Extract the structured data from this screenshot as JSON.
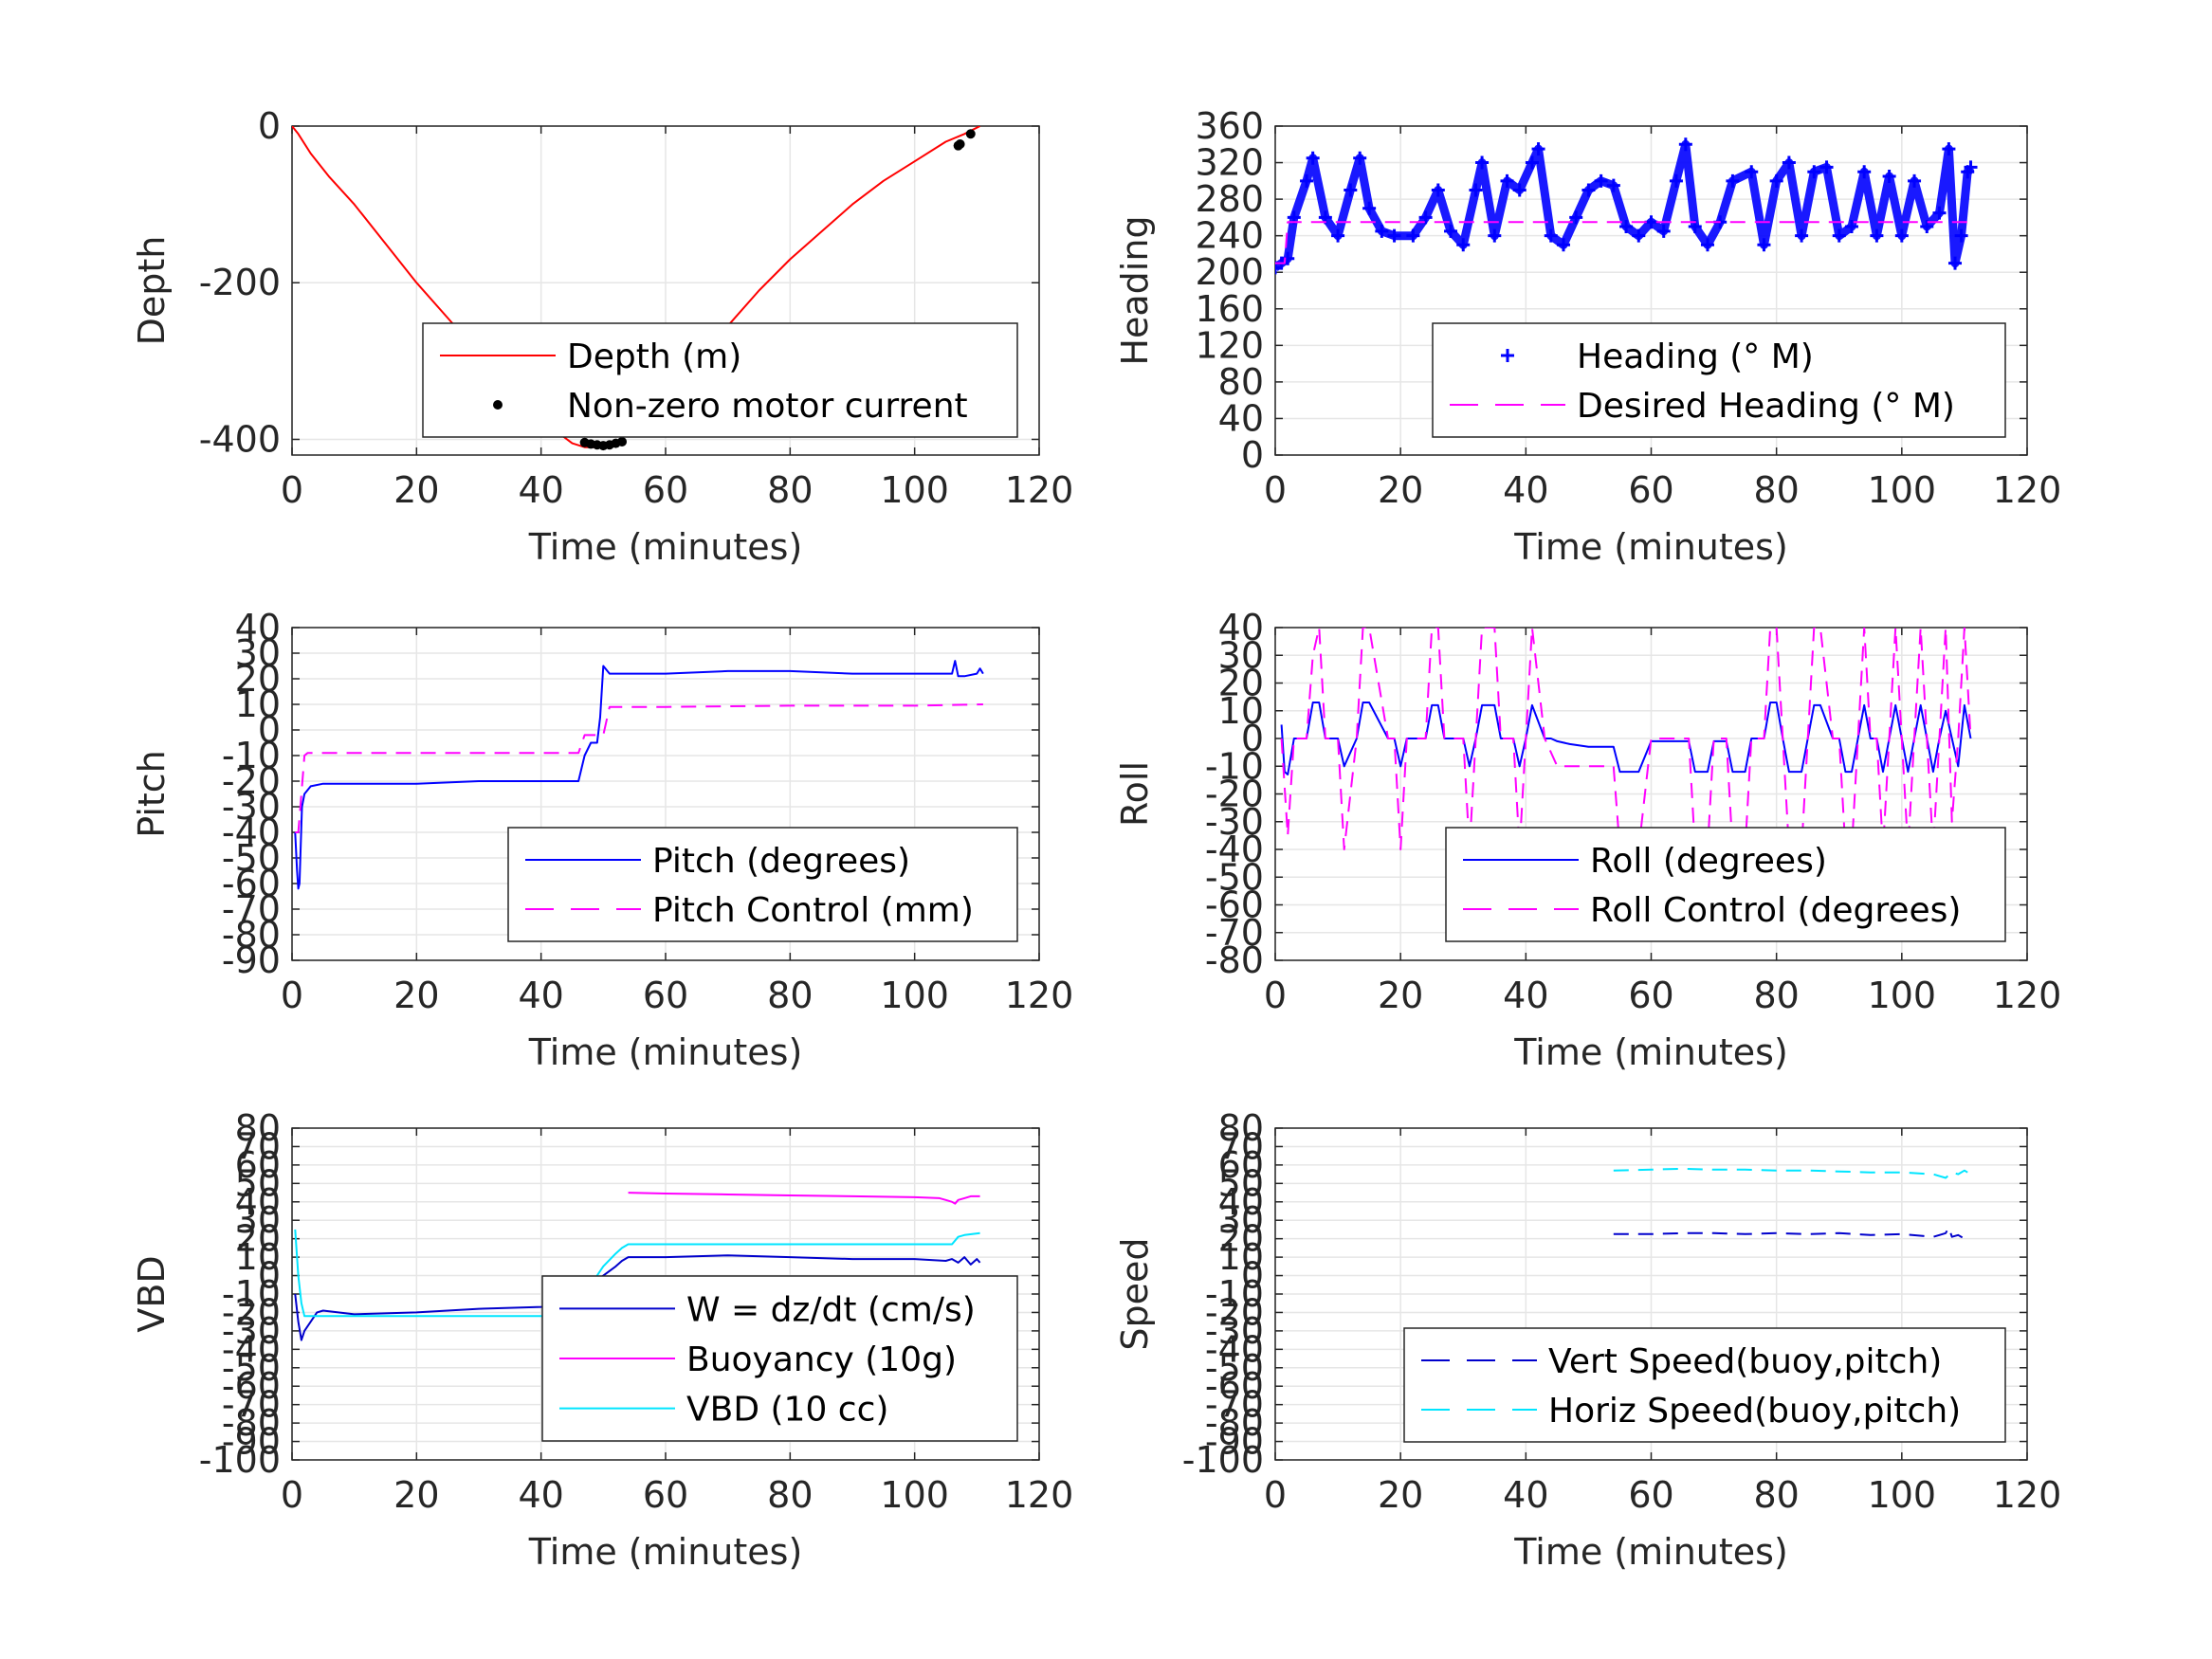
{
  "chart_data": [
    {
      "type": "line",
      "xlabel": "Time (minutes)",
      "ylabel": "Depth",
      "xlim": [
        0,
        120
      ],
      "ylim": [
        -420,
        0
      ],
      "xticks": [
        0,
        20,
        40,
        60,
        80,
        100,
        120
      ],
      "yticks": [
        -400,
        -200,
        0
      ],
      "grid": true,
      "legend_position": "bottom-right",
      "series": [
        {
          "name": "Depth (m)",
          "color": "#ff0000",
          "style": "solid",
          "x": [
            0,
            1,
            3,
            6,
            10,
            15,
            20,
            25,
            30,
            35,
            40,
            45,
            47,
            50,
            52,
            55,
            60,
            65,
            70,
            75,
            80,
            85,
            90,
            95,
            100,
            105,
            108,
            110.5
          ],
          "y": [
            0,
            -10,
            -35,
            -65,
            -100,
            -150,
            -200,
            -245,
            -290,
            -335,
            -375,
            -405,
            -410,
            -410,
            -405,
            -385,
            -345,
            -300,
            -255,
            -210,
            -170,
            -135,
            -100,
            -70,
            -45,
            -20,
            -10,
            0
          ]
        },
        {
          "name": "Non-zero motor current",
          "color": "#000000",
          "style": "dot",
          "x": [
            47,
            48,
            49,
            50,
            51,
            52,
            53,
            107,
            107.3,
            109
          ],
          "y": [
            -404,
            -406,
            -407,
            -408,
            -407,
            -405,
            -403,
            -25,
            -23,
            -10
          ]
        }
      ]
    },
    {
      "type": "scatter",
      "xlabel": "Time (minutes)",
      "ylabel": "Heading",
      "xlim": [
        0,
        120
      ],
      "ylim": [
        0,
        360
      ],
      "xticks": [
        0,
        20,
        40,
        60,
        80,
        100,
        120
      ],
      "yticks": [
        0,
        40,
        80,
        120,
        160,
        200,
        240,
        280,
        320,
        360
      ],
      "grid": true,
      "legend_position": "bottom-right",
      "series": [
        {
          "name": "Heading (° M)",
          "color": "#0000ff",
          "style": "plus",
          "x": [
            0,
            1,
            2,
            3,
            5,
            6,
            8,
            10,
            12,
            13.5,
            15,
            17,
            19,
            22,
            24,
            26,
            28,
            30,
            32,
            33,
            35,
            37,
            39,
            41,
            42,
            44,
            46,
            48,
            50,
            52,
            54,
            56,
            58,
            60,
            62,
            64,
            65.5,
            67,
            69,
            71,
            73,
            76,
            78,
            80,
            82,
            84,
            86,
            88,
            90,
            92,
            94,
            96,
            98,
            100,
            102,
            104,
            106,
            107.5,
            108.5,
            109.5,
            110.5,
            111
          ],
          "y": [
            205,
            210,
            215,
            260,
            300,
            325,
            260,
            240,
            290,
            325,
            270,
            245,
            240,
            240,
            260,
            290,
            245,
            230,
            290,
            320,
            240,
            300,
            290,
            320,
            335,
            240,
            230,
            260,
            290,
            300,
            295,
            250,
            240,
            255,
            245,
            300,
            340,
            250,
            230,
            255,
            300,
            310,
            230,
            300,
            320,
            240,
            310,
            315,
            240,
            250,
            310,
            240,
            305,
            240,
            300,
            250,
            265,
            335,
            210,
            240,
            310,
            315
          ]
        },
        {
          "name": "Desired Heading (° M)",
          "color": "#ff00ff",
          "style": "dashed",
          "x": [
            0,
            1.5,
            2,
            111
          ],
          "y": [
            210,
            210,
            255,
            255
          ]
        }
      ]
    },
    {
      "type": "line",
      "xlabel": "Time (minutes)",
      "ylabel": "Pitch",
      "xlim": [
        0,
        120
      ],
      "ylim": [
        -90,
        40
      ],
      "xticks": [
        0,
        20,
        40,
        60,
        80,
        100,
        120
      ],
      "yticks": [
        -90,
        -80,
        -70,
        -60,
        -50,
        -40,
        -30,
        -20,
        -10,
        0,
        10,
        20,
        30,
        40
      ],
      "grid": true,
      "legend_position": "bottom-right",
      "series": [
        {
          "name": "Pitch (degrees)",
          "color": "#0000ff",
          "style": "solid",
          "x": [
            0.5,
            0.8,
            1,
            1.2,
            1.4,
            1.6,
            2,
            3,
            5,
            10,
            20,
            30,
            40,
            46,
            47,
            48,
            49,
            49.5,
            50,
            51,
            60,
            70,
            80,
            90,
            100,
            105,
            106,
            106.5,
            107,
            108,
            110,
            110.5,
            111
          ],
          "y": [
            -40,
            -55,
            -62,
            -60,
            -45,
            -30,
            -25,
            -22,
            -21,
            -21,
            -21,
            -20,
            -20,
            -20,
            -10,
            -5,
            -5,
            5,
            25,
            22,
            22,
            23,
            23,
            22,
            22,
            22,
            22,
            27,
            21,
            21,
            22,
            24,
            22
          ]
        },
        {
          "name": "Pitch Control (mm)",
          "color": "#ff00ff",
          "style": "dashed",
          "x": [
            0.5,
            1,
            1.5,
            2,
            2.5,
            10,
            20,
            30,
            40,
            46,
            47,
            50,
            51,
            60,
            80,
            100,
            111
          ],
          "y": [
            -40,
            -40,
            -25,
            -10,
            -9,
            -9,
            -9,
            -9,
            -9,
            -9,
            -2,
            -2,
            9,
            9,
            9.5,
            9.5,
            10
          ]
        }
      ]
    },
    {
      "type": "line",
      "xlabel": "Time (minutes)",
      "ylabel": "Roll",
      "xlim": [
        0,
        120
      ],
      "ylim": [
        -80,
        40
      ],
      "xticks": [
        0,
        20,
        40,
        60,
        80,
        100,
        120
      ],
      "yticks": [
        -80,
        -70,
        -60,
        -50,
        -40,
        -30,
        -20,
        -10,
        0,
        10,
        20,
        30,
        40
      ],
      "grid": true,
      "legend_position": "bottom-right",
      "series": [
        {
          "name": "Roll (degrees)",
          "color": "#0000ff",
          "style": "solid",
          "x": [
            1,
            1.5,
            2,
            3,
            3.5,
            5,
            6,
            7,
            8,
            10,
            11,
            13,
            14,
            15,
            18,
            19,
            20,
            21,
            24,
            25,
            26,
            27,
            30,
            31,
            32,
            33,
            35,
            36,
            38,
            39,
            40,
            41,
            43,
            44,
            45,
            47,
            50,
            54,
            55,
            58,
            60,
            62,
            66,
            67,
            69,
            70,
            72,
            73,
            75,
            76,
            78,
            79,
            80,
            81,
            82,
            84,
            85,
            86,
            87,
            89,
            90,
            91,
            92,
            93,
            94,
            95,
            96,
            97,
            98,
            99,
            100,
            101,
            102,
            103,
            104,
            105,
            106,
            107,
            108,
            109,
            110,
            111
          ],
          "y": [
            5,
            -12,
            -13,
            0,
            0,
            0,
            13,
            13,
            0,
            0,
            -10,
            0,
            13,
            13,
            0,
            0,
            -10,
            0,
            0,
            12,
            12,
            0,
            0,
            -10,
            0,
            12,
            12,
            0,
            0,
            -10,
            0,
            12,
            0,
            0,
            -1,
            -2,
            -3,
            -3,
            -12,
            -12,
            -1,
            -1,
            -1,
            -12,
            -12,
            -1,
            -1,
            -12,
            -12,
            0,
            0,
            13,
            13,
            0,
            -12,
            -12,
            0,
            12,
            12,
            0,
            0,
            -12,
            -12,
            0,
            12,
            0,
            0,
            -12,
            0,
            12,
            0,
            -12,
            0,
            12,
            0,
            -12,
            0,
            10,
            0,
            -10,
            12,
            0
          ]
        },
        {
          "name": "Roll Control (degrees)",
          "color": "#ff00ff",
          "style": "dashed",
          "x": [
            1,
            2,
            3,
            5,
            6,
            7,
            8,
            10,
            11,
            13,
            14,
            15,
            18,
            19,
            20,
            21,
            24,
            25,
            26,
            27,
            30,
            31,
            32,
            33,
            35,
            36,
            38,
            39,
            40,
            41,
            43,
            45,
            48,
            50,
            54,
            55,
            58,
            60,
            62,
            66,
            67,
            69,
            70,
            72,
            73,
            75,
            76,
            78,
            79,
            80,
            81,
            82,
            84,
            85,
            86,
            87,
            89,
            90,
            91,
            92,
            93,
            94,
            95,
            96,
            97,
            98,
            99,
            100,
            101,
            102,
            103,
            104,
            105,
            106,
            107,
            108,
            109,
            110,
            111
          ],
          "y": [
            0,
            -35,
            0,
            0,
            30,
            40,
            0,
            0,
            -40,
            0,
            40,
            40,
            0,
            0,
            -40,
            0,
            0,
            40,
            40,
            0,
            0,
            -40,
            0,
            40,
            40,
            0,
            0,
            -40,
            0,
            40,
            0,
            -10,
            -10,
            -10,
            -10,
            -40,
            -40,
            0,
            0,
            0,
            -40,
            -40,
            0,
            0,
            -40,
            -40,
            0,
            0,
            40,
            40,
            0,
            -40,
            -40,
            0,
            40,
            40,
            0,
            0,
            -40,
            -40,
            0,
            40,
            0,
            0,
            -40,
            0,
            40,
            0,
            -40,
            0,
            40,
            0,
            -40,
            0,
            40,
            -30,
            0,
            40,
            0
          ]
        }
      ]
    },
    {
      "type": "line",
      "xlabel": "Time (minutes)",
      "ylabel": "VBD",
      "xlim": [
        0,
        120
      ],
      "ylim": [
        -100,
        80
      ],
      "xticks": [
        0,
        20,
        40,
        60,
        80,
        100,
        120
      ],
      "yticks": [
        -100,
        -90,
        -80,
        -70,
        -60,
        -50,
        -40,
        -30,
        -20,
        -10,
        0,
        10,
        20,
        30,
        40,
        50,
        60,
        70,
        80
      ],
      "grid": true,
      "legend_position": "bottom-right",
      "series": [
        {
          "name": "W = dz/dt (cm/s)",
          "color": "#0000cc",
          "style": "solid",
          "x": [
            0.5,
            1,
            1.5,
            2,
            3,
            4,
            5,
            10,
            20,
            30,
            40,
            45,
            46,
            47,
            48,
            50,
            52,
            53,
            54,
            60,
            70,
            80,
            90,
            100,
            105,
            106,
            107,
            108,
            109,
            110,
            110.5
          ],
          "y": [
            -10,
            -25,
            -35,
            -30,
            -25,
            -20,
            -19,
            -21,
            -20,
            -18,
            -17,
            -16,
            -15,
            -10,
            -5,
            0,
            5,
            8,
            10,
            10,
            11,
            10,
            9,
            9,
            8,
            9,
            7,
            10,
            6,
            9,
            7
          ]
        },
        {
          "name": "Buoyancy (10g)",
          "color": "#ff00ff",
          "style": "solid",
          "x": [
            54,
            60,
            70,
            80,
            90,
            100,
            104,
            105,
            106,
            106.5,
            107,
            108,
            109,
            110.5
          ],
          "y": [
            45,
            44.5,
            44,
            43.5,
            43,
            42.5,
            42,
            41,
            40,
            39,
            41,
            42,
            43,
            43
          ]
        },
        {
          "name": "VBD (10 cc)",
          "color": "#00e5ff",
          "style": "solid",
          "x": [
            0.5,
            1,
            1.5,
            2,
            3,
            5,
            10,
            20,
            30,
            40,
            46,
            47,
            48,
            50,
            52,
            53,
            54,
            60,
            70,
            80,
            90,
            100,
            105,
            106,
            107,
            108,
            110.5
          ],
          "y": [
            25,
            0,
            -15,
            -22,
            -22,
            -22,
            -22,
            -22,
            -22,
            -22,
            -22,
            -15,
            -5,
            5,
            12,
            15,
            17,
            17,
            17,
            17,
            17,
            17,
            17,
            17,
            21,
            22,
            23
          ]
        }
      ]
    },
    {
      "type": "line",
      "xlabel": "Time (minutes)",
      "ylabel": "Speed",
      "xlim": [
        0,
        120
      ],
      "ylim": [
        -100,
        80
      ],
      "xticks": [
        0,
        20,
        40,
        60,
        80,
        100,
        120
      ],
      "yticks": [
        -100,
        -90,
        -80,
        -70,
        -60,
        -50,
        -40,
        -30,
        -20,
        -10,
        0,
        10,
        20,
        30,
        40,
        50,
        60,
        70,
        80
      ],
      "grid": true,
      "legend_position": "bottom-right",
      "series": [
        {
          "name": "Vert Speed(buoy,pitch)",
          "color": "#0000cc",
          "style": "dashed",
          "x": [
            54,
            60,
            65,
            70,
            75,
            80,
            85,
            90,
            95,
            100,
            105,
            106,
            107,
            107.5,
            108,
            109,
            110,
            110.5
          ],
          "y": [
            22.5,
            22.5,
            23,
            23,
            22.5,
            23,
            22.5,
            23,
            22,
            22.5,
            21,
            22,
            23,
            26,
            21,
            22,
            20,
            23
          ]
        },
        {
          "name": "Horiz Speed(buoy,pitch)",
          "color": "#00e5ff",
          "style": "dashed",
          "x": [
            54,
            60,
            65,
            70,
            75,
            80,
            85,
            90,
            95,
            100,
            105,
            106,
            107,
            108,
            109,
            110,
            110.5
          ],
          "y": [
            57,
            57.5,
            58,
            57.5,
            57.5,
            57,
            57,
            56.5,
            56,
            56,
            55,
            54,
            53,
            56,
            55,
            57,
            56
          ]
        }
      ]
    }
  ]
}
